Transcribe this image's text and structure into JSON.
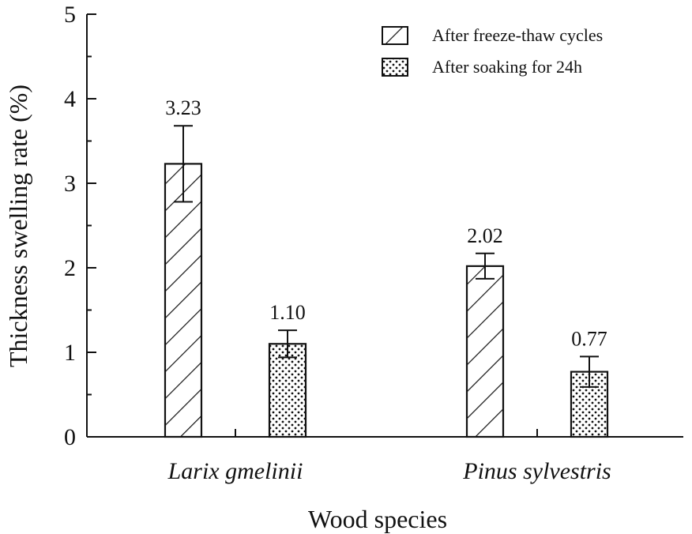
{
  "chart_data": {
    "type": "bar",
    "xlabel": "Wood species",
    "ylabel": "Thickness swelling rate (%)",
    "ylim": [
      0,
      5
    ],
    "yticks": [
      "0",
      "1",
      "2",
      "3",
      "4",
      "5"
    ],
    "categories": [
      "Larix gmelinii",
      "Pinus sylvestris"
    ],
    "series": [
      {
        "name": "After freeze-thaw cycles",
        "pattern": "hatch",
        "values": [
          3.23,
          2.02
        ],
        "errors": [
          0.45,
          0.15
        ],
        "labels": [
          "3.23",
          "2.02"
        ]
      },
      {
        "name": "After soaking for 24h",
        "pattern": "dots",
        "values": [
          1.1,
          0.77
        ],
        "errors": [
          0.16,
          0.18
        ],
        "labels": [
          "1.10",
          "0.77"
        ]
      }
    ],
    "legend_position": "top-right",
    "grid": false,
    "colors": {
      "stroke": "#111111",
      "fill": "#ffffff"
    }
  }
}
